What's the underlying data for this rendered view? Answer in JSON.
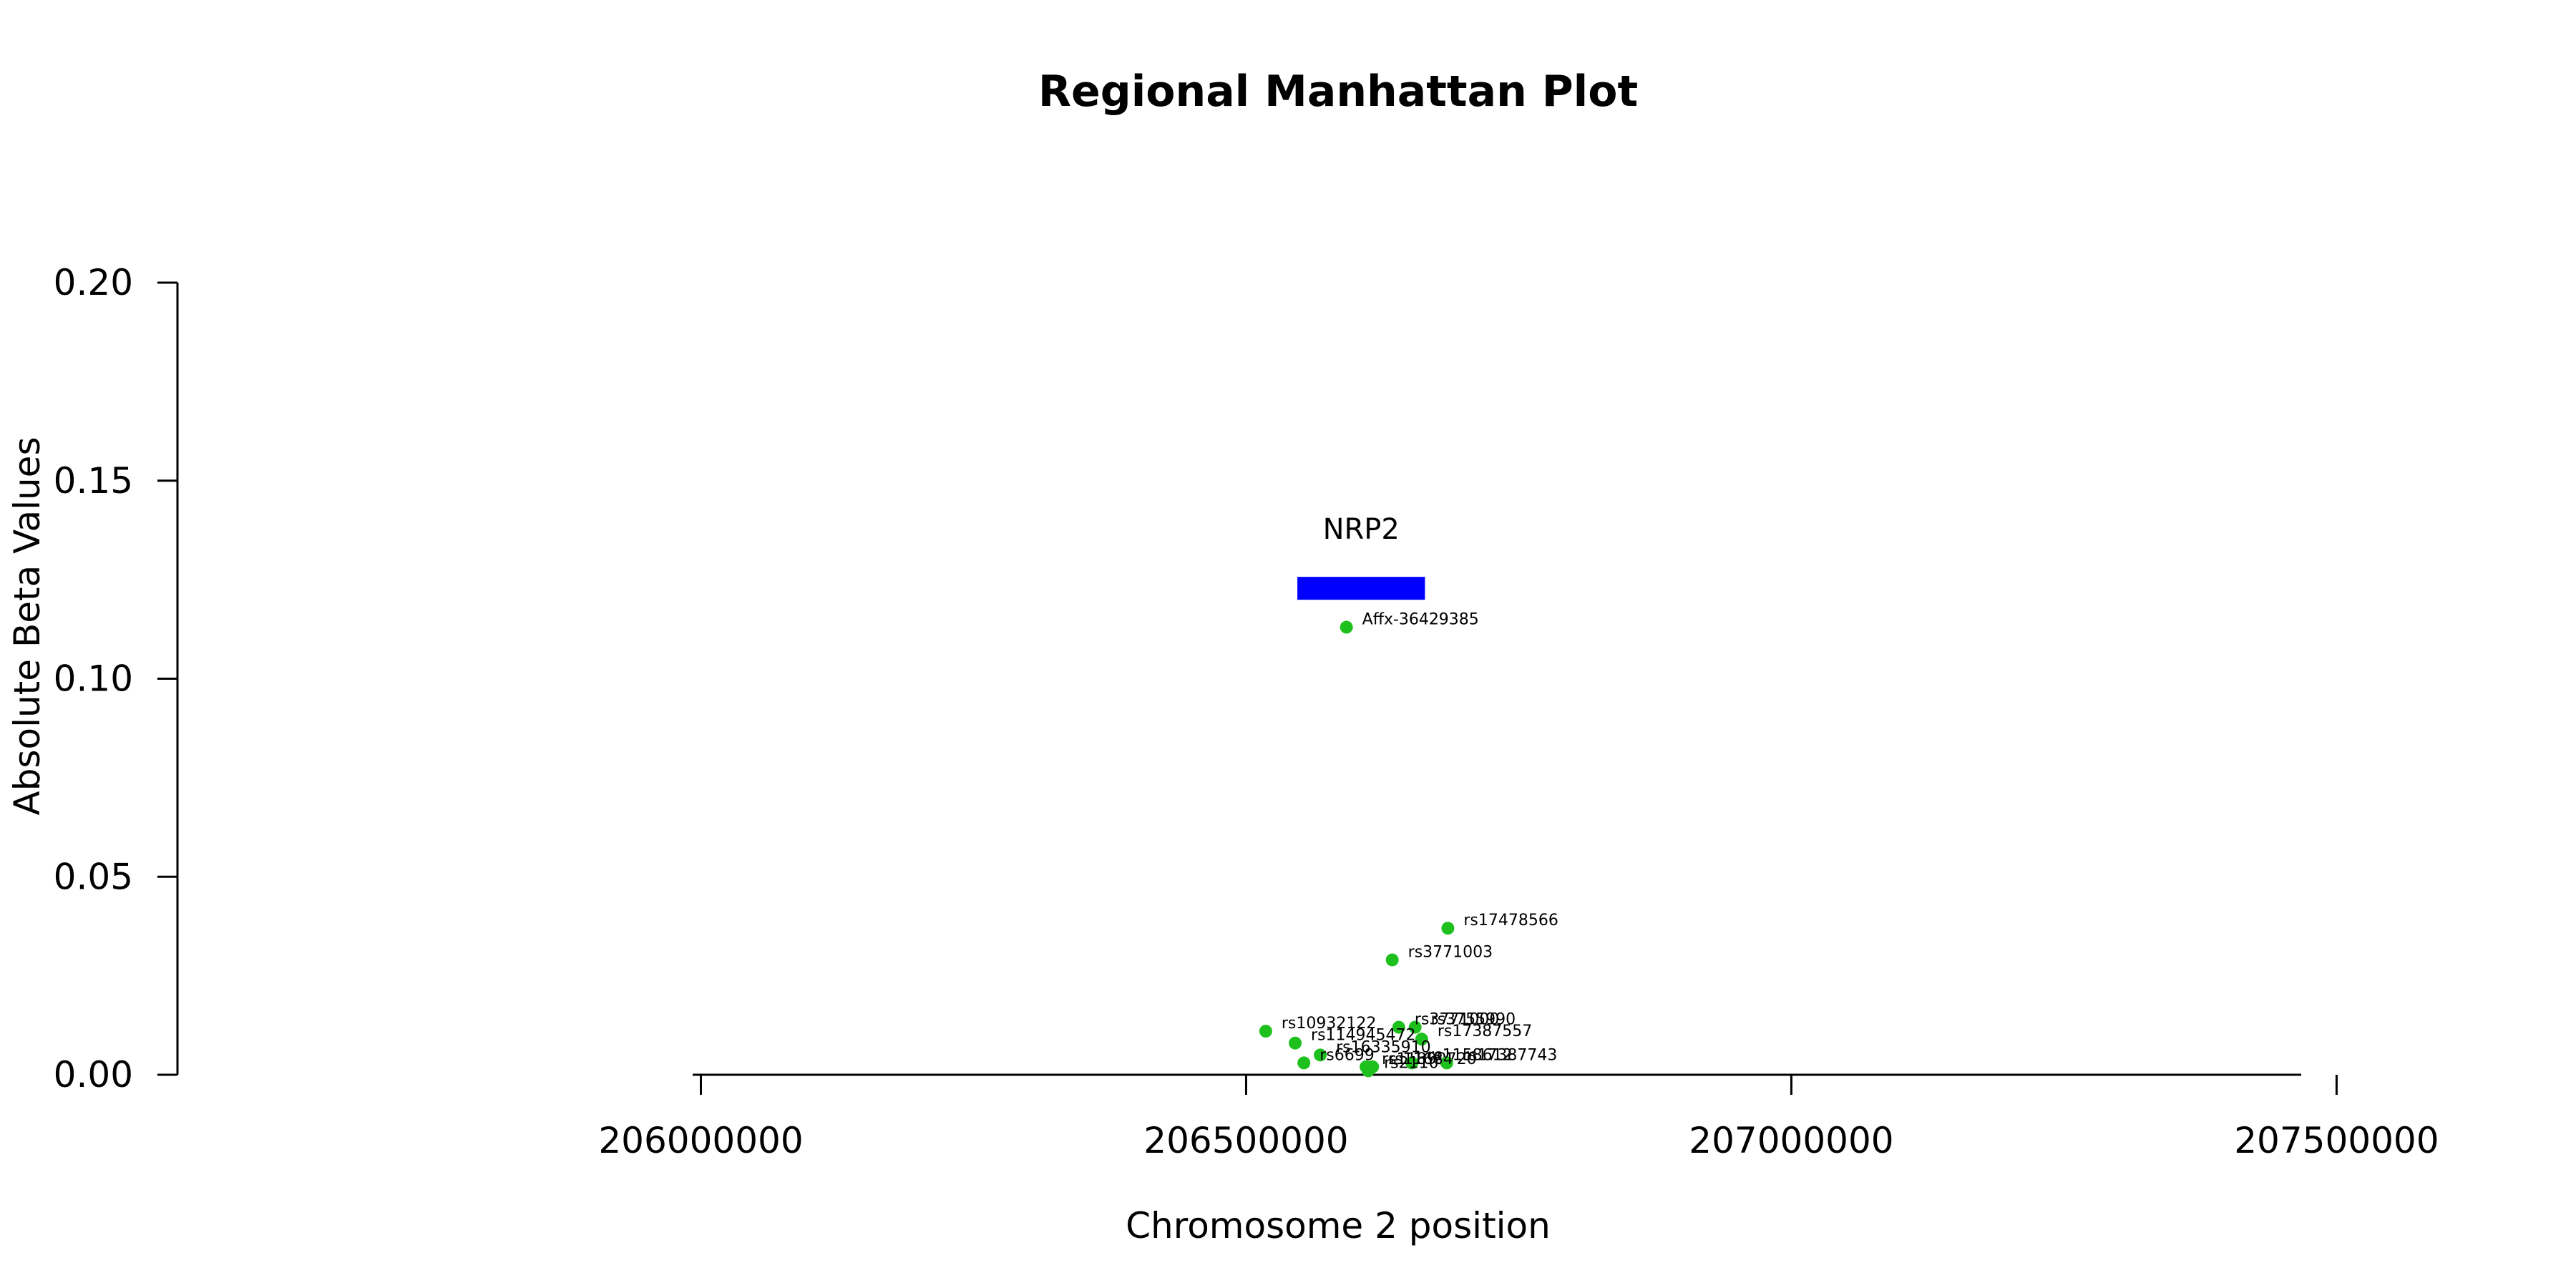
{
  "chart_data": {
    "type": "scatter",
    "title": "Regional Manhattan Plot",
    "xlabel": "Chromosome 2 position",
    "ylabel": "Absolute Beta Values",
    "xlim": [
      205520000,
      207650000
    ],
    "ylim": [
      0,
      0.2
    ],
    "xticks": [
      206000000,
      206500000,
      207000000,
      207500000
    ],
    "xtick_labels": [
      "206000000",
      "206500000",
      "207000000",
      "207500000"
    ],
    "yticks": [
      0,
      0.05,
      0.1,
      0.15,
      0.2
    ],
    "ytick_labels": [
      "0.00",
      "0.05",
      "0.10",
      "0.15",
      "0.20"
    ],
    "point_color": "#1ec01e",
    "gene": {
      "name": "NRP2",
      "start": 206547000,
      "end": 206664000,
      "y": 0.123,
      "color": "#0000ff"
    },
    "points": [
      {
        "label": "Affx-36429385",
        "x": 206592000,
        "y": 0.113
      },
      {
        "label": "rs17478566",
        "x": 206685000,
        "y": 0.037
      },
      {
        "label": "rs3771003",
        "x": 206634000,
        "y": 0.029
      },
      {
        "label": "rs10932122",
        "x": 206518000,
        "y": 0.011
      },
      {
        "label": "rs3755990",
        "x": 206655000,
        "y": 0.012
      },
      {
        "label": "rs3771000",
        "x": 206640000,
        "y": 0.012
      },
      {
        "label": "rs17387557",
        "x": 206661000,
        "y": 0.009
      },
      {
        "label": "rs114945472",
        "x": 206545000,
        "y": 0.008
      },
      {
        "label": "rs16335910",
        "x": 206568000,
        "y": 0.005
      },
      {
        "label": "rs6699",
        "x": 206553000,
        "y": 0.003
      },
      {
        "label": "rs11899720",
        "x": 206610000,
        "y": 0.002
      },
      {
        "label": "rs1158612",
        "x": 206652000,
        "y": 0.003
      },
      {
        "label": "rs17387743",
        "x": 206684000,
        "y": 0.003
      },
      {
        "label": "rs2110",
        "x": 206612000,
        "y": 0.001
      },
      {
        "label": "rs11684",
        "x": 206616000,
        "y": 0.002
      }
    ]
  }
}
